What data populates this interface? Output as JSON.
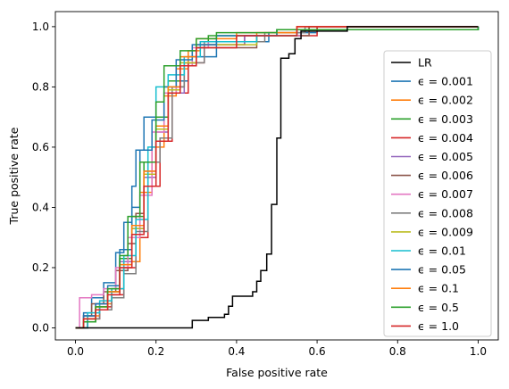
{
  "chart_data": {
    "type": "line",
    "title": "",
    "xlabel": "False positive rate",
    "ylabel": "True positive rate",
    "xlim": [
      -0.05,
      1.05
    ],
    "ylim": [
      -0.04,
      1.05
    ],
    "xticks": [
      "0.0",
      "0.2",
      "0.4",
      "0.6",
      "0.8",
      "1.0"
    ],
    "yticks": [
      "0.0",
      "0.2",
      "0.4",
      "0.6",
      "0.8",
      "1.0"
    ],
    "grid": false,
    "legend_position": "lower-right",
    "series": [
      {
        "name": "LR",
        "color": "#000000",
        "x": [
          0,
          0.258,
          0.29,
          0.33,
          0.37,
          0.38,
          0.39,
          0.44,
          0.45,
          0.46,
          0.475,
          0.487,
          0.5,
          0.51,
          0.53,
          0.545,
          0.56,
          0.675,
          1.0
        ],
        "y": [
          0,
          0,
          0.025,
          0.035,
          0.045,
          0.072,
          0.105,
          0.12,
          0.155,
          0.19,
          0.245,
          0.41,
          0.63,
          0.895,
          0.91,
          0.96,
          0.985,
          1.0,
          1.0
        ]
      },
      {
        "name": "ϵ = 0.001",
        "color": "#1f77b4",
        "x": [
          0,
          0.02,
          0.04,
          0.07,
          0.1,
          0.12,
          0.14,
          0.15,
          0.17,
          0.2,
          0.22,
          0.25,
          0.28,
          0.35,
          0.48,
          0.6,
          1.0
        ],
        "y": [
          0,
          0.05,
          0.1,
          0.15,
          0.25,
          0.35,
          0.47,
          0.59,
          0.7,
          0.75,
          0.78,
          0.82,
          0.9,
          0.95,
          0.98,
          1.0,
          1.0
        ]
      },
      {
        "name": "ϵ = 0.002",
        "color": "#ff7f0e",
        "x": [
          0,
          0.03,
          0.06,
          0.09,
          0.12,
          0.16,
          0.19,
          0.22,
          0.25,
          0.28,
          0.31,
          0.45,
          0.55,
          1.0
        ],
        "y": [
          0,
          0.04,
          0.08,
          0.13,
          0.22,
          0.45,
          0.6,
          0.77,
          0.86,
          0.92,
          0.95,
          0.98,
          1.0,
          1.0
        ]
      },
      {
        "name": "ϵ = 0.003",
        "color": "#2ca02c",
        "x": [
          0,
          0.02,
          0.05,
          0.08,
          0.11,
          0.14,
          0.17,
          0.2,
          0.23,
          0.26,
          0.3,
          0.33,
          0.5,
          0.58,
          1.0
        ],
        "y": [
          0,
          0.02,
          0.06,
          0.12,
          0.23,
          0.37,
          0.55,
          0.7,
          0.82,
          0.87,
          0.93,
          0.97,
          0.99,
          1.0,
          1.0
        ]
      },
      {
        "name": "ϵ = 0.004",
        "color": "#d62728",
        "x": [
          0,
          0.03,
          0.06,
          0.09,
          0.12,
          0.15,
          0.18,
          0.21,
          0.24,
          0.28,
          0.32,
          0.42,
          0.6,
          1.0
        ],
        "y": [
          0,
          0.03,
          0.07,
          0.11,
          0.2,
          0.3,
          0.47,
          0.62,
          0.78,
          0.88,
          0.94,
          0.97,
          1.0,
          1.0
        ]
      },
      {
        "name": "ϵ = 0.005",
        "color": "#9467bd",
        "x": [
          0,
          0.02,
          0.05,
          0.08,
          0.11,
          0.14,
          0.17,
          0.2,
          0.23,
          0.27,
          0.3,
          0.42,
          0.55,
          1.0
        ],
        "y": [
          0,
          0.04,
          0.08,
          0.12,
          0.22,
          0.33,
          0.5,
          0.65,
          0.78,
          0.88,
          0.94,
          0.97,
          0.99,
          1.0
        ]
      },
      {
        "name": "ϵ = 0.006",
        "color": "#8c564b",
        "x": [
          0,
          0.02,
          0.04,
          0.07,
          0.1,
          0.13,
          0.15,
          0.17,
          0.2,
          0.23,
          0.27,
          0.3,
          0.45,
          0.58,
          1.0
        ],
        "y": [
          0,
          0.04,
          0.08,
          0.12,
          0.19,
          0.28,
          0.38,
          0.52,
          0.67,
          0.8,
          0.88,
          0.93,
          0.97,
          1.0,
          1.0
        ]
      },
      {
        "name": "ϵ = 0.007",
        "color": "#e377c2",
        "x": [
          0,
          0.01,
          0.04,
          0.07,
          0.1,
          0.13,
          0.16,
          0.19,
          0.22,
          0.25,
          0.29,
          0.33,
          0.45,
          0.56,
          1.0
        ],
        "y": [
          0,
          0.1,
          0.11,
          0.13,
          0.2,
          0.3,
          0.44,
          0.65,
          0.78,
          0.87,
          0.93,
          0.95,
          0.97,
          0.99,
          1.0
        ]
      },
      {
        "name": "ϵ = 0.008",
        "color": "#7f7f7f",
        "x": [
          0,
          0.03,
          0.06,
          0.09,
          0.12,
          0.15,
          0.18,
          0.21,
          0.24,
          0.27,
          0.32,
          0.47,
          0.57,
          1.0
        ],
        "y": [
          0,
          0.03,
          0.06,
          0.1,
          0.18,
          0.32,
          0.55,
          0.63,
          0.8,
          0.88,
          0.95,
          0.98,
          1.0,
          1.0
        ]
      },
      {
        "name": "ϵ = 0.009",
        "color": "#bcbd22",
        "x": [
          0,
          0.02,
          0.05,
          0.08,
          0.11,
          0.14,
          0.17,
          0.2,
          0.23,
          0.26,
          0.3,
          0.45,
          0.55,
          1.0
        ],
        "y": [
          0,
          0.03,
          0.07,
          0.12,
          0.21,
          0.33,
          0.51,
          0.66,
          0.79,
          0.88,
          0.94,
          0.97,
          0.99,
          1.0
        ]
      },
      {
        "name": "ϵ = 0.01",
        "color": "#17becf",
        "x": [
          0,
          0.03,
          0.06,
          0.09,
          0.12,
          0.15,
          0.18,
          0.2,
          0.23,
          0.27,
          0.31,
          0.45,
          0.55,
          1.0
        ],
        "y": [
          0,
          0.05,
          0.09,
          0.13,
          0.24,
          0.36,
          0.6,
          0.8,
          0.84,
          0.9,
          0.95,
          0.97,
          0.99,
          1.0
        ]
      },
      {
        "name": "ϵ = 0.05",
        "color": "#1f77b4",
        "x": [
          0,
          0.02,
          0.05,
          0.08,
          0.11,
          0.14,
          0.16,
          0.19,
          0.22,
          0.25,
          0.29,
          0.35,
          0.5,
          1.0
        ],
        "y": [
          0,
          0.04,
          0.08,
          0.14,
          0.26,
          0.4,
          0.59,
          0.69,
          0.8,
          0.89,
          0.94,
          0.97,
          0.99,
          1.0
        ]
      },
      {
        "name": "ϵ = 0.1",
        "color": "#ff7f0e",
        "x": [
          0,
          0.02,
          0.05,
          0.08,
          0.11,
          0.14,
          0.17,
          0.2,
          0.23,
          0.26,
          0.3,
          0.4,
          0.55,
          1.0
        ],
        "y": [
          0,
          0.03,
          0.07,
          0.12,
          0.21,
          0.34,
          0.52,
          0.67,
          0.8,
          0.9,
          0.96,
          0.98,
          1.0,
          1.0
        ]
      },
      {
        "name": "ϵ = 0.5",
        "color": "#2ca02c",
        "x": [
          0,
          0.02,
          0.05,
          0.08,
          0.11,
          0.13,
          0.16,
          0.2,
          0.22,
          0.26,
          0.3,
          0.35,
          0.5,
          1.0
        ],
        "y": [
          0,
          0.02,
          0.07,
          0.13,
          0.24,
          0.37,
          0.55,
          0.75,
          0.87,
          0.92,
          0.96,
          0.98,
          0.99,
          1.0
        ]
      },
      {
        "name": "ϵ = 1.0",
        "color": "#d62728",
        "x": [
          0,
          0.02,
          0.05,
          0.08,
          0.11,
          0.14,
          0.17,
          0.2,
          0.23,
          0.26,
          0.3,
          0.4,
          0.55,
          1.0
        ],
        "y": [
          0,
          0.03,
          0.06,
          0.11,
          0.2,
          0.31,
          0.47,
          0.62,
          0.78,
          0.87,
          0.93,
          0.97,
          1.0,
          1.0
        ]
      }
    ]
  }
}
